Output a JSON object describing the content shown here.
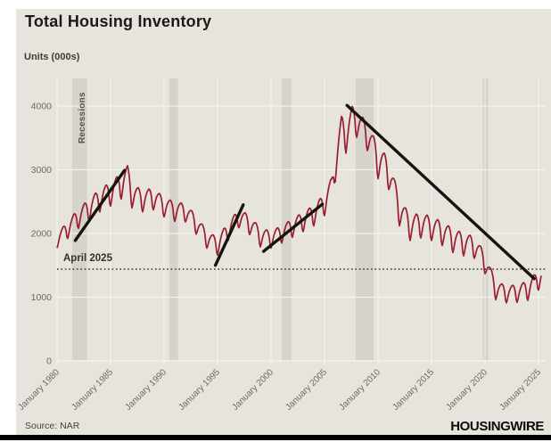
{
  "header": {
    "title": "Total Housing Inventory",
    "units_label": "Units (000s)"
  },
  "annotations": {
    "recessions_label": "Recessions",
    "reference_label": "April 2025"
  },
  "footer": {
    "source": "Source: NAR",
    "brand": "HOUSINGWIRE"
  },
  "colors": {
    "card_background": "#e7e4de",
    "recession_band": "#d6d3cd",
    "gridline": "#f4f2ec",
    "series_line": "#9a1e2d",
    "trend_line": "#17140f",
    "reference_line": "#44403a",
    "tick_text": "#6e6a62",
    "bottom_bar": "#000000"
  },
  "chart_data": {
    "type": "line",
    "title": "Total Housing Inventory",
    "ylabel": "Units (000s)",
    "xlabel": "",
    "grid": true,
    "legend": "none",
    "xlim": [
      1980,
      2025.7
    ],
    "ylim": [
      0,
      4400
    ],
    "y_ticks": [
      0,
      1000,
      2000,
      3000,
      4000
    ],
    "x_ticks": [
      {
        "year": 1980,
        "label": "January 1980"
      },
      {
        "year": 1985,
        "label": "January 1985"
      },
      {
        "year": 1990,
        "label": "January 1990"
      },
      {
        "year": 1995,
        "label": "January 1995"
      },
      {
        "year": 2000,
        "label": "January 2000"
      },
      {
        "year": 2005,
        "label": "January 2005"
      },
      {
        "year": 2010,
        "label": "January 2010"
      },
      {
        "year": 2015,
        "label": "January 2015"
      },
      {
        "year": 2020,
        "label": "January 2020"
      },
      {
        "year": 2025,
        "label": "January 2025"
      }
    ],
    "recession_bands": [
      [
        1981.4,
        1982.8
      ],
      [
        1990.5,
        1991.3
      ],
      [
        2001.0,
        2001.9
      ],
      [
        2007.9,
        2009.6
      ],
      [
        2019.8,
        2020.3
      ]
    ],
    "reference_line": {
      "label": "April 2025",
      "value": 1440
    },
    "trendlines": [
      {
        "x1": 1981.7,
        "y1": 1890,
        "x2": 1986.3,
        "y2": 2990
      },
      {
        "x1": 1994.8,
        "y1": 1500,
        "x2": 1997.4,
        "y2": 2450
      },
      {
        "x1": 1999.3,
        "y1": 1720,
        "x2": 2004.8,
        "y2": 2460
      },
      {
        "x1": 2007.1,
        "y1": 4010,
        "x2": 2024.6,
        "y2": 1290
      }
    ],
    "series": [
      {
        "name": "Total housing inventory (000s, monthly)",
        "color": "#9a1e2d",
        "seasonal_profile": [
          -1,
          -0.7,
          -0.3,
          0.05,
          0.3,
          0.5,
          0.62,
          0.7,
          0.62,
          0.42,
          0,
          -0.75
        ],
        "anchors": [
          [
            1980.0,
            1900,
            130
          ],
          [
            1981.0,
            2080,
            160
          ],
          [
            1982.0,
            2260,
            180
          ],
          [
            1983.0,
            2400,
            200
          ],
          [
            1984.0,
            2550,
            210
          ],
          [
            1985.0,
            2650,
            220
          ],
          [
            1986.0,
            2780,
            240
          ],
          [
            1986.6,
            2900,
            240
          ],
          [
            1987.0,
            2620,
            220
          ],
          [
            1988.0,
            2540,
            200
          ],
          [
            1989.0,
            2570,
            200
          ],
          [
            1990.0,
            2440,
            180
          ],
          [
            1991.0,
            2370,
            180
          ],
          [
            1992.0,
            2350,
            170
          ],
          [
            1993.0,
            2160,
            170
          ],
          [
            1994.0,
            1930,
            160
          ],
          [
            1995.0,
            1820,
            160
          ],
          [
            1996.0,
            2060,
            170
          ],
          [
            1997.0,
            2260,
            170
          ],
          [
            1998.0,
            2160,
            180
          ],
          [
            1999.0,
            1960,
            170
          ],
          [
            2000.0,
            1930,
            160
          ],
          [
            2001.0,
            2010,
            160
          ],
          [
            2002.0,
            2110,
            170
          ],
          [
            2003.0,
            2210,
            180
          ],
          [
            2004.0,
            2310,
            190
          ],
          [
            2005.0,
            2480,
            200
          ],
          [
            2005.7,
            2750,
            200
          ],
          [
            2006.0,
            3050,
            240
          ],
          [
            2006.6,
            3680,
            250
          ],
          [
            2007.0,
            3520,
            260
          ],
          [
            2007.6,
            3820,
            260
          ],
          [
            2008.0,
            3760,
            250
          ],
          [
            2009.0,
            3560,
            260
          ],
          [
            2010.0,
            3160,
            300
          ],
          [
            2011.0,
            2980,
            290
          ],
          [
            2012.0,
            2380,
            260
          ],
          [
            2013.0,
            2120,
            230
          ],
          [
            2014.0,
            2160,
            230
          ],
          [
            2015.0,
            2110,
            220
          ],
          [
            2016.0,
            2030,
            220
          ],
          [
            2017.0,
            1920,
            220
          ],
          [
            2018.0,
            1860,
            210
          ],
          [
            2019.0,
            1810,
            200
          ],
          [
            2020.0,
            1560,
            190
          ],
          [
            2021.0,
            1130,
            170
          ],
          [
            2022.0,
            1070,
            160
          ],
          [
            2023.0,
            1080,
            160
          ],
          [
            2024.0,
            1130,
            180
          ],
          [
            2025.0,
            1290,
            180
          ],
          [
            2025.33,
            1340,
            180
          ]
        ]
      }
    ]
  }
}
